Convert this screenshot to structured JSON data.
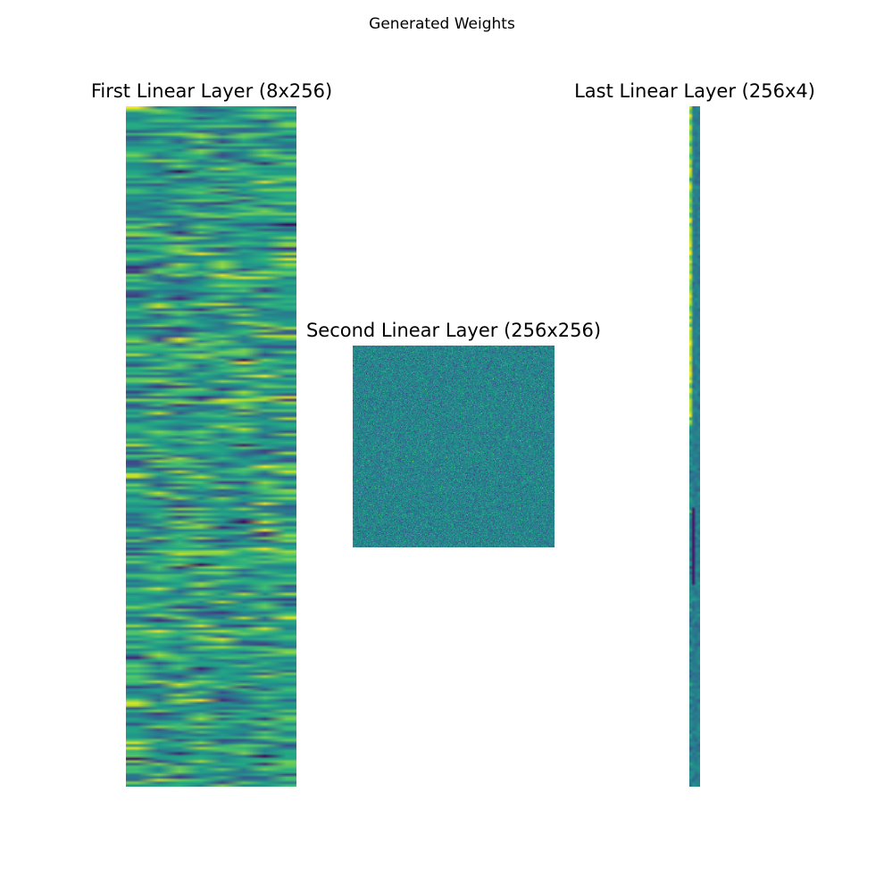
{
  "figure": {
    "suptitle": "Generated Weights"
  },
  "chart_data": [
    {
      "type": "heatmap",
      "title": "First Linear Layer (8x256)",
      "rows": 256,
      "cols": 8,
      "colormap": "viridis",
      "axis": "off",
      "grid": false
    },
    {
      "type": "heatmap",
      "title": "Second Linear Layer (256x256)",
      "rows": 256,
      "cols": 256,
      "colormap": "viridis",
      "axis": "off",
      "grid": false
    },
    {
      "type": "heatmap",
      "title": "Last Linear Layer (256x4)",
      "rows": 256,
      "cols": 4,
      "colormap": "viridis",
      "axis": "off",
      "grid": false
    }
  ]
}
